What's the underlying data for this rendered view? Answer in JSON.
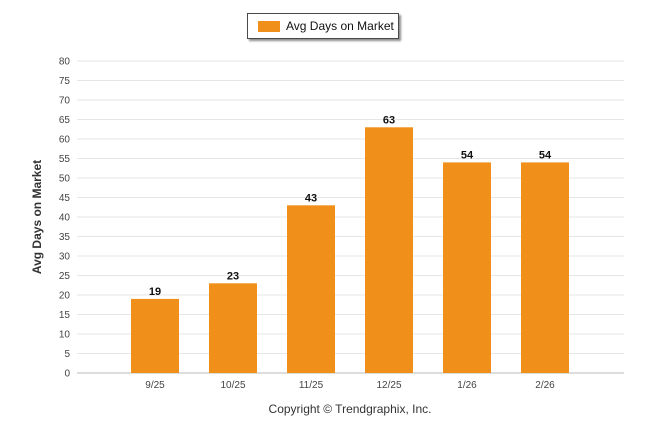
{
  "legend": {
    "label": "Avg Days on Market"
  },
  "copyright": "Copyright © Trendgraphix, Inc.",
  "colors": {
    "bar": "#F0901A",
    "grid": "#e6e6e6",
    "axis": "#bbbbbb",
    "text": "#444444"
  },
  "chart_data": {
    "type": "bar",
    "categories": [
      "9/25",
      "10/25",
      "11/25",
      "12/25",
      "1/26",
      "2/26"
    ],
    "series": [
      {
        "name": "Avg Days on Market",
        "values": [
          19,
          23,
          43,
          63,
          54,
          54
        ]
      }
    ],
    "data_labels": [
      "19",
      "23",
      "43",
      "63",
      "54",
      "54"
    ],
    "xlabel": "",
    "ylabel": "Avg Days on Market",
    "ylim": [
      0,
      80
    ],
    "yticks": [
      0,
      5,
      10,
      15,
      20,
      25,
      30,
      35,
      40,
      45,
      50,
      55,
      60,
      65,
      70,
      75,
      80
    ],
    "grid": true,
    "legend_position": "top-center"
  }
}
